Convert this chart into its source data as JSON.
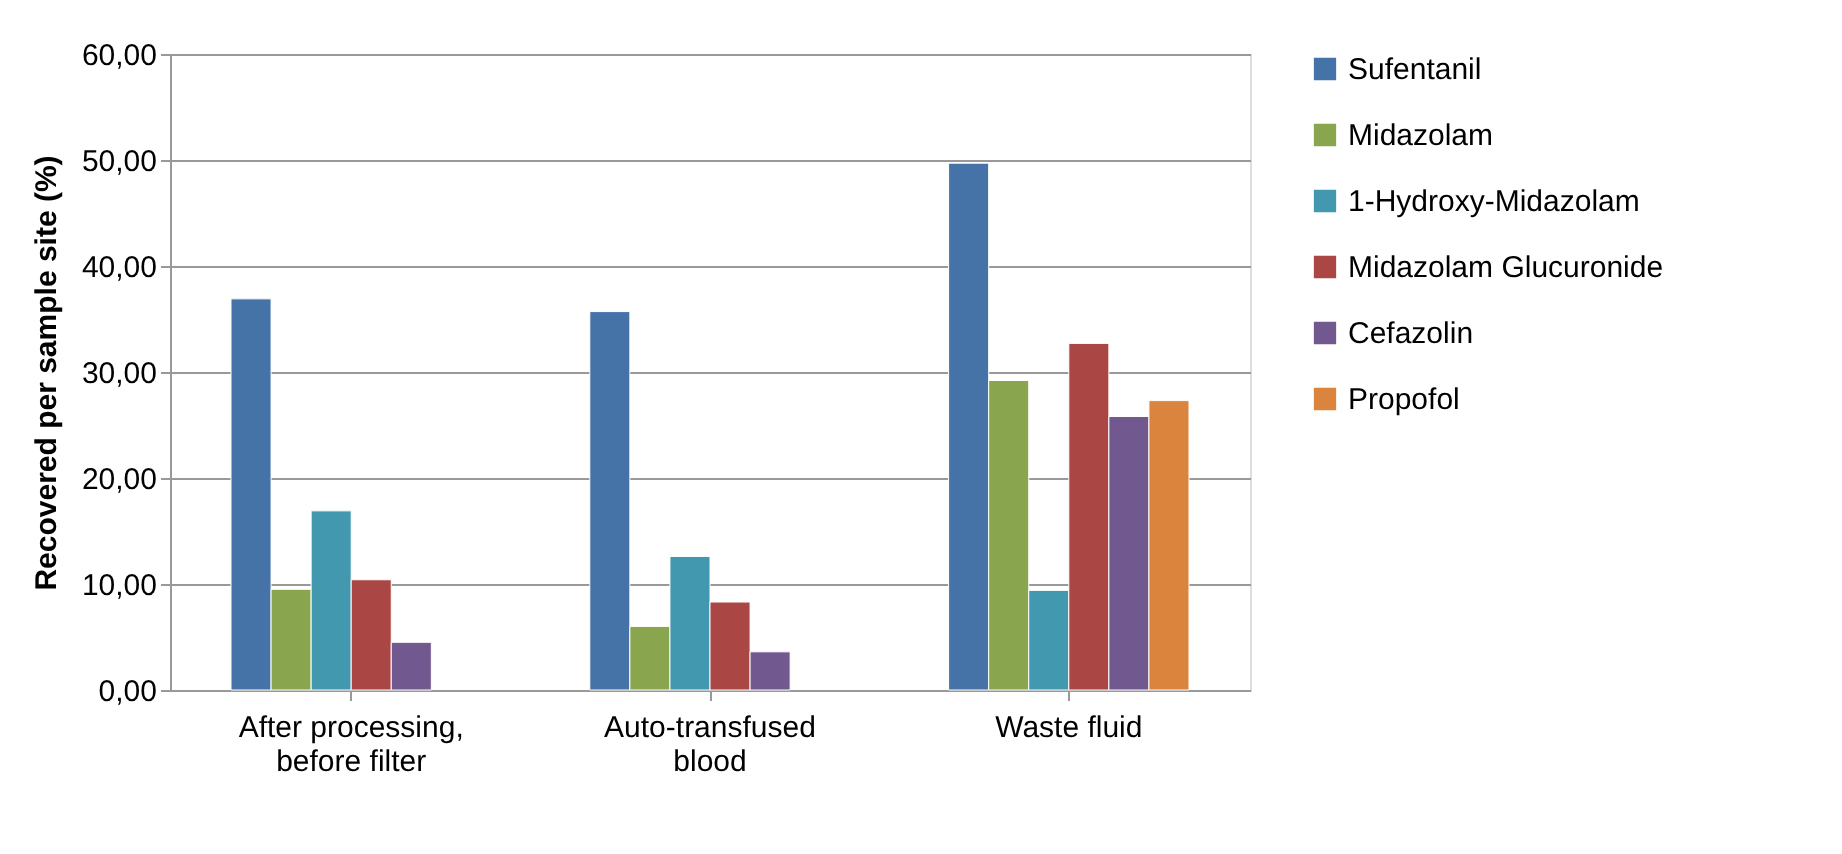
{
  "chart_data": {
    "type": "bar",
    "ylabel": "Recovered per sample site (%)",
    "categories": [
      "After processing, before filter",
      "Auto-transfused blood",
      "Waste fluid"
    ],
    "series": [
      {
        "name": "Sufentanil",
        "color": "#4572a7",
        "values": [
          36.9,
          35.7,
          49.7
        ]
      },
      {
        "name": "Midazolam",
        "color": "#89a54e",
        "values": [
          9.5,
          6.0,
          29.2
        ]
      },
      {
        "name": "1-Hydroxy-Midazolam",
        "color": "#4198af",
        "values": [
          16.9,
          12.6,
          9.4
        ]
      },
      {
        "name": "Midazolam Glucuronide",
        "color": "#aa4643",
        "values": [
          10.4,
          8.3,
          32.7
        ]
      },
      {
        "name": "Cefazolin",
        "color": "#71588f",
        "values": [
          4.5,
          3.6,
          25.8
        ]
      },
      {
        "name": "Propofol",
        "color": "#db843d",
        "values": [
          null,
          null,
          27.3
        ]
      }
    ],
    "ylim": [
      0,
      60
    ],
    "yticks": [
      {
        "value": 0,
        "label": "0,00"
      },
      {
        "value": 10,
        "label": "10,00"
      },
      {
        "value": 20,
        "label": "20,00"
      },
      {
        "value": 30,
        "label": "30,00"
      },
      {
        "value": 40,
        "label": "40,00"
      },
      {
        "value": 50,
        "label": "50,00"
      },
      {
        "value": 60,
        "label": "60,00"
      }
    ],
    "grid": "y",
    "legend": "right"
  }
}
